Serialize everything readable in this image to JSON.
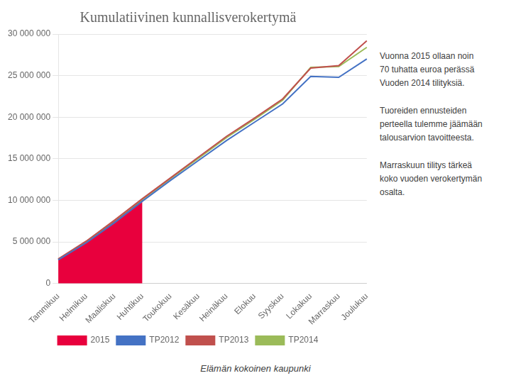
{
  "chart_data": {
    "type": "line",
    "title": "Kumulatiivinen kunnallisverokertymä",
    "categories": [
      "Tammikuu",
      "Helmikuu",
      "Maaliskuu",
      "Huhtikuu",
      "Toukokuu",
      "Kesäkuu",
      "Heinäkuu",
      "Elokuu",
      "Syyskuu",
      "Lokakuu",
      "Marraskuu",
      "Joulukuu"
    ],
    "series": [
      {
        "name": "2015",
        "type": "area",
        "color": "#e8003d",
        "values": [
          2900000,
          5000000,
          7500000,
          10100000,
          null,
          null,
          null,
          null,
          null,
          null,
          null,
          null
        ]
      },
      {
        "name": "TP2012",
        "type": "line",
        "color": "#4472c4",
        "values": [
          2850000,
          4900000,
          7300000,
          9900000,
          12400000,
          14800000,
          17200000,
          19400000,
          21600000,
          24900000,
          24800000,
          27000000
        ]
      },
      {
        "name": "TP2013",
        "type": "line",
        "color": "#c0504d",
        "values": [
          2950000,
          5100000,
          7600000,
          10200000,
          12700000,
          15200000,
          17700000,
          19900000,
          22200000,
          25900000,
          26200000,
          29200000
        ]
      },
      {
        "name": "TP2014",
        "type": "line",
        "color": "#9bbb59",
        "values": [
          2900000,
          5050000,
          7550000,
          10100000,
          12600000,
          15050000,
          17550000,
          19750000,
          22050000,
          26000000,
          26100000,
          28400000
        ]
      }
    ],
    "ylim": [
      0,
      30000000
    ],
    "yticks": [
      0,
      {
        "value": 5000000,
        "label": "5 000 000"
      },
      {
        "value": 10000000,
        "label": "10 000 000"
      },
      {
        "value": 15000000,
        "label": "15 000 000"
      },
      {
        "value": 20000000,
        "label": "20 000 000"
      },
      {
        "value": 25000000,
        "label": "25 000 000"
      },
      {
        "value": 30000000,
        "label": "30 000 000"
      }
    ],
    "grid": true,
    "legend": "bottom",
    "annotations": [
      "Vuonna 2015 ollaan noin\n70 tuhatta euroa perässä\nVuoden 2014 tilityksiä.\n\nTuoreiden ennusteiden\nperteella tulemme jäämään\ntalousarvion tavoitteesta.\n\nMarraskuun tilitys tärkeä\nkoko vuoden verokertymän\nosalta.",
      "Elämän kokoinen kaupunki"
    ]
  }
}
